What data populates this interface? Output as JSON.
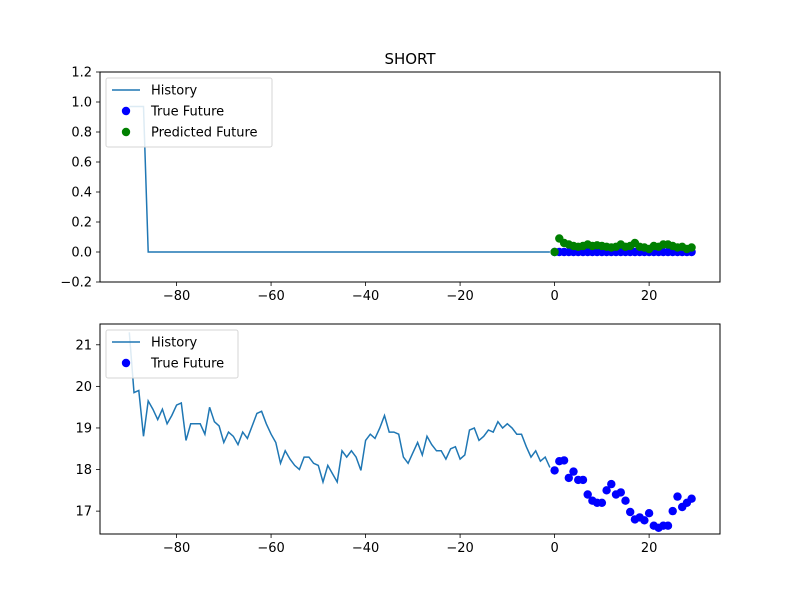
{
  "chart_data": [
    {
      "type": "line",
      "title": "SHORT",
      "xlim": [
        -96.2,
        35
      ],
      "ylim": [
        -0.2,
        1.2
      ],
      "xticks": [
        -80,
        -60,
        -40,
        -20,
        0,
        20
      ],
      "yticks": [
        -0.2,
        0.0,
        0.2,
        0.4,
        0.6,
        0.8,
        1.0,
        1.2
      ],
      "ytick_format": 1,
      "legend_position": "top-left",
      "legend": [
        {
          "label": "History",
          "kind": "line",
          "color": "#1f77b4"
        },
        {
          "label": "True Future",
          "kind": "dot",
          "color": "#0000ff"
        },
        {
          "label": "Predicted Future",
          "kind": "dot",
          "color": "#008000"
        }
      ],
      "series": [
        {
          "name": "History",
          "kind": "line",
          "color": "#1f77b4",
          "x": [
            -90,
            -87,
            -86,
            -85,
            -80,
            -70,
            -60,
            -50,
            -40,
            -30,
            -20,
            -10,
            -5,
            -1
          ],
          "y": [
            0.97,
            0.97,
            0.0,
            0.0,
            0.0,
            0.0,
            0.0,
            0.0,
            0.0,
            0.0,
            0.0,
            0.0,
            0.0,
            0.0
          ]
        },
        {
          "name": "True Future",
          "kind": "scatter",
          "color": "#0000ff",
          "x": [
            0,
            1,
            2,
            3,
            4,
            5,
            6,
            7,
            8,
            9,
            10,
            11,
            12,
            13,
            14,
            15,
            16,
            17,
            18,
            19,
            20,
            21,
            22,
            23,
            24,
            25,
            26,
            27,
            28,
            29
          ],
          "y": [
            0,
            0,
            0,
            0,
            0,
            0,
            0,
            0,
            0,
            0,
            0,
            0,
            0,
            0,
            0,
            0,
            0,
            0,
            0,
            0,
            0,
            0,
            0,
            0,
            0,
            0,
            0,
            0,
            0,
            0
          ]
        },
        {
          "name": "Predicted Future",
          "kind": "scatter",
          "color": "#008000",
          "x": [
            0,
            1,
            2,
            3,
            4,
            5,
            6,
            7,
            8,
            9,
            10,
            11,
            12,
            13,
            14,
            15,
            16,
            17,
            18,
            19,
            20,
            21,
            22,
            23,
            24,
            25,
            26,
            27,
            28,
            29
          ],
          "y": [
            0.0,
            0.09,
            0.06,
            0.05,
            0.04,
            0.035,
            0.04,
            0.05,
            0.04,
            0.045,
            0.04,
            0.035,
            0.03,
            0.035,
            0.05,
            0.035,
            0.04,
            0.06,
            0.035,
            0.03,
            0.02,
            0.04,
            0.035,
            0.05,
            0.05,
            0.04,
            0.03,
            0.035,
            0.02,
            0.03
          ]
        }
      ]
    },
    {
      "type": "line",
      "title": "",
      "xlim": [
        -96.2,
        35
      ],
      "ylim": [
        16.45,
        21.5
      ],
      "xticks": [
        -80,
        -60,
        -40,
        -20,
        0,
        20
      ],
      "yticks": [
        17,
        18,
        19,
        20,
        21
      ],
      "ytick_format": 0,
      "legend_position": "top-left",
      "legend": [
        {
          "label": "History",
          "kind": "line",
          "color": "#1f77b4"
        },
        {
          "label": "True Future",
          "kind": "dot",
          "color": "#0000ff"
        }
      ],
      "series": [
        {
          "name": "History",
          "kind": "line",
          "color": "#1f77b4",
          "x": [
            -90,
            -89,
            -88,
            -87,
            -86,
            -85,
            -84,
            -83,
            -82,
            -81,
            -80,
            -79,
            -78,
            -77,
            -76,
            -75,
            -74,
            -73,
            -72,
            -71,
            -70,
            -69,
            -68,
            -67,
            -66,
            -65,
            -64,
            -63,
            -62,
            -61,
            -60,
            -59,
            -58,
            -57,
            -56,
            -55,
            -54,
            -53,
            -52,
            -51,
            -50,
            -49,
            -48,
            -47,
            -46,
            -45,
            -44,
            -43,
            -42,
            -41,
            -40,
            -39,
            -38,
            -37,
            -36,
            -35,
            -34,
            -33,
            -32,
            -31,
            -30,
            -29,
            -28,
            -27,
            -26,
            -25,
            -24,
            -23,
            -22,
            -21,
            -20,
            -19,
            -18,
            -17,
            -16,
            -15,
            -14,
            -13,
            -12,
            -11,
            -10,
            -9,
            -8,
            -7,
            -6,
            -5,
            -4,
            -3,
            -2,
            -1
          ],
          "y": [
            21.3,
            19.85,
            19.9,
            18.8,
            19.65,
            19.45,
            19.2,
            19.45,
            19.1,
            19.3,
            19.55,
            19.6,
            18.7,
            19.1,
            19.1,
            19.1,
            18.85,
            19.5,
            19.15,
            19.05,
            18.65,
            18.9,
            18.8,
            18.6,
            18.9,
            18.75,
            19.05,
            19.35,
            19.4,
            19.1,
            18.85,
            18.65,
            18.15,
            18.45,
            18.25,
            18.1,
            18.0,
            18.3,
            18.3,
            18.15,
            18.1,
            17.7,
            18.1,
            17.9,
            17.7,
            18.45,
            18.3,
            18.45,
            18.3,
            17.98,
            18.7,
            18.85,
            18.75,
            19.0,
            19.3,
            18.9,
            18.9,
            18.85,
            18.3,
            18.15,
            18.4,
            18.65,
            18.35,
            18.8,
            18.6,
            18.45,
            18.45,
            18.25,
            18.5,
            18.55,
            18.25,
            18.35,
            18.95,
            19.0,
            18.7,
            18.8,
            18.95,
            18.9,
            19.15,
            19.0,
            19.1,
            19.0,
            18.85,
            18.85,
            18.55,
            18.3,
            18.45,
            18.2,
            18.3,
            18.05
          ]
        },
        {
          "name": "True Future",
          "kind": "scatter",
          "color": "#0000ff",
          "x": [
            0,
            1,
            2,
            3,
            4,
            5,
            6,
            7,
            8,
            9,
            10,
            11,
            12,
            13,
            14,
            15,
            16,
            17,
            18,
            19,
            20,
            21,
            22,
            23,
            24,
            25,
            26,
            27,
            28,
            29
          ],
          "y": [
            17.98,
            18.2,
            18.22,
            17.8,
            17.95,
            17.75,
            17.75,
            17.4,
            17.25,
            17.2,
            17.2,
            17.5,
            17.65,
            17.4,
            17.45,
            17.25,
            16.98,
            16.8,
            16.85,
            16.78,
            16.95,
            16.65,
            16.6,
            16.65,
            16.65,
            17.0,
            17.35,
            17.1,
            17.2,
            17.3
          ]
        }
      ]
    }
  ]
}
